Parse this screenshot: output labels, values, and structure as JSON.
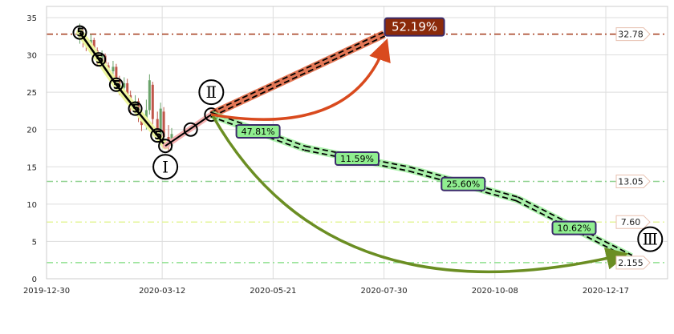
{
  "chart_data": {
    "type": "candlestick",
    "title": "",
    "xlabel": "",
    "ylabel": "",
    "grid": true,
    "x_ticks": [
      "2019-12-30",
      "2020-03-12",
      "2020-05-21",
      "2020-07-30",
      "2020-10-08",
      "2020-12-17"
    ],
    "y_ticks": [
      0,
      5,
      10,
      15,
      20,
      25,
      30,
      35
    ],
    "ylim": [
      0,
      36.5
    ],
    "xlim": [
      "2019-12-30",
      "2021-01-25"
    ],
    "candles": [
      {
        "date": "2020-01-20",
        "o": 32.5,
        "c": 33.5,
        "h": 34.2,
        "l": 31.5
      },
      {
        "date": "2020-01-22",
        "o": 33.0,
        "c": 32.2,
        "h": 33.6,
        "l": 31.0
      },
      {
        "date": "2020-01-24",
        "o": 32.2,
        "c": 31.4,
        "h": 33.0,
        "l": 30.5
      },
      {
        "date": "2020-01-27",
        "o": 31.4,
        "c": 32.0,
        "h": 32.8,
        "l": 30.8
      },
      {
        "date": "2020-01-29",
        "o": 32.0,
        "c": 30.6,
        "h": 32.3,
        "l": 29.8
      },
      {
        "date": "2020-01-31",
        "o": 30.6,
        "c": 29.4,
        "h": 31.0,
        "l": 28.5
      },
      {
        "date": "2020-02-03",
        "o": 29.4,
        "c": 29.9,
        "h": 30.6,
        "l": 28.2
      },
      {
        "date": "2020-02-05",
        "o": 29.9,
        "c": 28.6,
        "h": 30.2,
        "l": 27.5
      },
      {
        "date": "2020-02-07",
        "o": 28.6,
        "c": 27.8,
        "h": 29.0,
        "l": 26.8
      },
      {
        "date": "2020-02-10",
        "o": 27.8,
        "c": 28.4,
        "h": 29.2,
        "l": 26.5
      },
      {
        "date": "2020-02-12",
        "o": 28.4,
        "c": 26.6,
        "h": 28.8,
        "l": 25.8
      },
      {
        "date": "2020-02-14",
        "o": 26.6,
        "c": 25.6,
        "h": 27.2,
        "l": 24.6
      },
      {
        "date": "2020-02-17",
        "o": 25.6,
        "c": 26.2,
        "h": 27.0,
        "l": 24.8
      },
      {
        "date": "2020-02-19",
        "o": 26.2,
        "c": 24.6,
        "h": 26.8,
        "l": 23.6
      },
      {
        "date": "2020-02-21",
        "o": 24.6,
        "c": 23.2,
        "h": 25.2,
        "l": 22.0
      },
      {
        "date": "2020-02-24",
        "o": 23.2,
        "c": 23.8,
        "h": 24.6,
        "l": 22.2
      },
      {
        "date": "2020-02-26",
        "o": 23.8,
        "c": 22.0,
        "h": 24.2,
        "l": 21.0
      },
      {
        "date": "2020-02-28",
        "o": 22.0,
        "c": 20.6,
        "h": 22.6,
        "l": 19.8
      },
      {
        "date": "2020-03-02",
        "o": 20.6,
        "c": 22.6,
        "h": 24.0,
        "l": 20.0
      },
      {
        "date": "2020-03-04",
        "o": 22.6,
        "c": 26.6,
        "h": 27.4,
        "l": 22.0
      },
      {
        "date": "2020-03-06",
        "o": 26.0,
        "c": 21.4,
        "h": 26.4,
        "l": 20.6
      },
      {
        "date": "2020-03-09",
        "o": 21.4,
        "c": 19.2,
        "h": 22.4,
        "l": 18.4
      },
      {
        "date": "2020-03-11",
        "o": 19.2,
        "c": 22.8,
        "h": 23.6,
        "l": 18.6
      },
      {
        "date": "2020-03-13",
        "o": 22.4,
        "c": 19.0,
        "h": 23.0,
        "l": 18.0
      },
      {
        "date": "2020-03-16",
        "o": 19.0,
        "c": 17.8,
        "h": 20.6,
        "l": 17.0
      },
      {
        "date": "2020-03-18",
        "o": 17.8,
        "c": 19.4,
        "h": 20.2,
        "l": 17.2
      }
    ],
    "levels": [
      {
        "value": 32.78,
        "label": "32.78",
        "color": "#a33a1a"
      },
      {
        "value": 13.05,
        "label": "13.05",
        "color": "#8fd18f"
      },
      {
        "value": 7.6,
        "label": "7.60",
        "color": "#e4f59a"
      },
      {
        "value": 2.155,
        "label": "2.155",
        "color": "#8fe08f"
      }
    ],
    "wave_points": [
      {
        "date": "2020-01-20",
        "value": 33.0,
        "glyph": "5"
      },
      {
        "date": "2020-02-01",
        "value": 29.4,
        "glyph": "5"
      },
      {
        "date": "2020-02-12",
        "value": 26.0,
        "glyph": "5"
      },
      {
        "date": "2020-02-24",
        "value": 22.8,
        "glyph": "5"
      },
      {
        "date": "2020-03-09",
        "value": 19.2,
        "glyph": "5"
      },
      {
        "date": "2020-03-14",
        "value": 17.8,
        "glyph": ""
      },
      {
        "date": "2020-03-30",
        "value": 20.0,
        "glyph": ""
      },
      {
        "date": "2020-04-12",
        "value": 22.0,
        "glyph": ""
      }
    ],
    "wave_labels": [
      {
        "date": "2020-03-14",
        "value": 15.0,
        "label": "Ⅰ"
      },
      {
        "date": "2020-04-12",
        "value": 25.0,
        "label": "Ⅱ"
      },
      {
        "date": "2021-01-14",
        "value": 5.3,
        "label": "Ⅲ"
      }
    ],
    "projections": [
      {
        "label": "52.19%",
        "from": {
          "date": "2020-04-12",
          "value": 22.0
        },
        "to": {
          "date": "2020-07-30",
          "value": 32.78
        },
        "color": "#d94a1e"
      },
      {
        "label": "47.81%",
        "from": {
          "date": "2020-04-12",
          "value": 22.0
        },
        "to": {
          "date": "2020-06-10",
          "value": 17.5
        },
        "color": "#90ee90"
      },
      {
        "label": "11.59%",
        "from": {
          "date": "2020-06-10",
          "value": 17.5
        },
        "to": {
          "date": "2020-08-15",
          "value": 14.7
        },
        "color": "#90ee90"
      },
      {
        "label": "25.60%",
        "from": {
          "date": "2020-08-15",
          "value": 14.7
        },
        "to": {
          "date": "2020-10-22",
          "value": 10.7
        },
        "color": "#90ee90"
      },
      {
        "label": "10.62%",
        "from": {
          "date": "2020-10-22",
          "value": 10.7
        },
        "to": {
          "date": "2021-01-02",
          "value": 2.9
        },
        "color": "#90ee90"
      }
    ]
  }
}
